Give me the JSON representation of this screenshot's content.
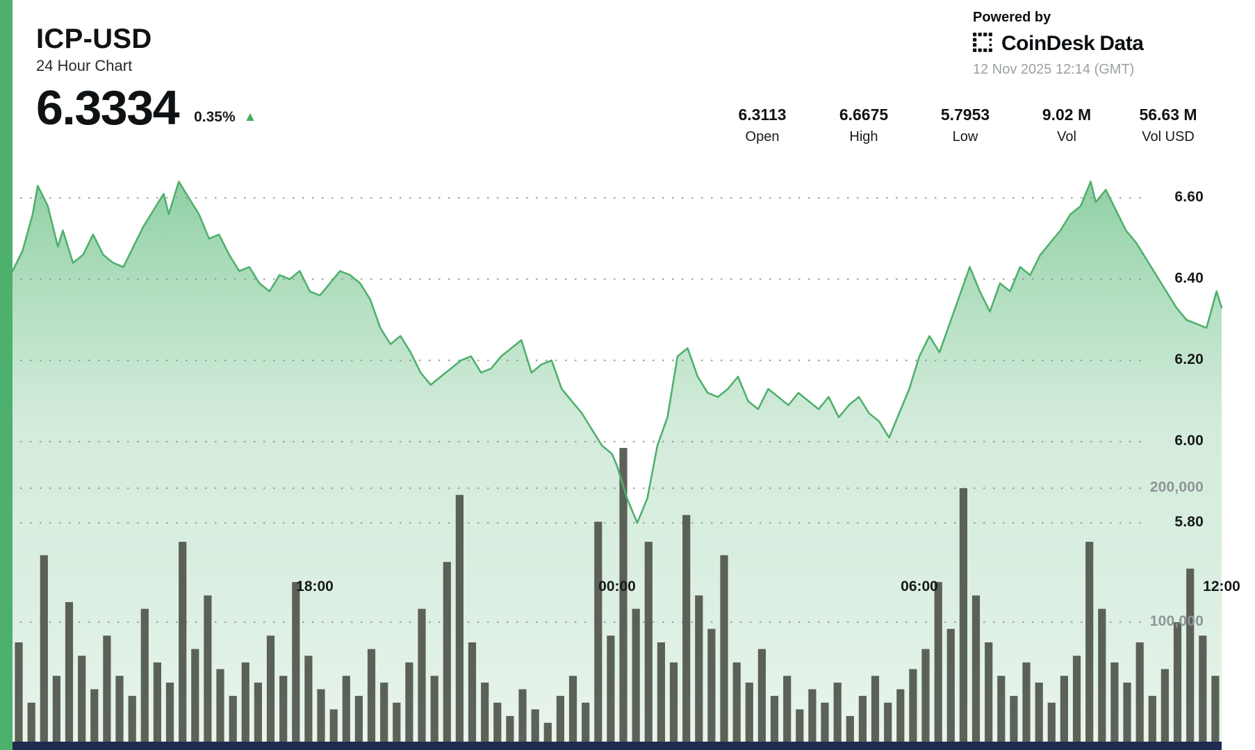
{
  "header": {
    "symbol": "ICP-USD",
    "subtitle": "24 Hour Chart",
    "price": "6.3334",
    "change": "0.35%",
    "change_direction": "up"
  },
  "branding": {
    "powered_by": "Powered by",
    "brand_1": "CoinDesk",
    "brand_2": "Data",
    "timestamp": "12 Nov 2025 12:14 (GMT)"
  },
  "stats": [
    {
      "value": "6.3113",
      "label": "Open"
    },
    {
      "value": "6.6675",
      "label": "High"
    },
    {
      "value": "5.7953",
      "label": "Low"
    },
    {
      "value": "9.02 M",
      "label": "Vol"
    },
    {
      "value": "56.63 M",
      "label": "Vol USD"
    }
  ],
  "accents": {
    "left_bar": "#4db06c",
    "bottom_bar": "#1e2b4f"
  },
  "chart_data": {
    "type": "area",
    "title": "ICP-USD 24 Hour Chart",
    "legend": "none",
    "grid": "dotted-horizontal",
    "colors": {
      "line": "#4fb06c",
      "fill_top": "#7cc894",
      "fill_mid": "#b9e0c6",
      "fill_bottom": "#e9f4ec",
      "volume_bar": "#51564b",
      "grid_dot": "#8f959b",
      "up_triangle": "#43ad60"
    },
    "x_axis": {
      "range_hours": [
        0,
        24
      ],
      "labels": [
        "18:00",
        "00:00",
        "06:00",
        "12:00"
      ],
      "label_hours": [
        6,
        12,
        18,
        24
      ]
    },
    "price_axis": {
      "side": "right",
      "ticks": [
        6.6,
        6.4,
        6.2,
        6.0,
        5.8
      ],
      "tick_labels": [
        "6.60",
        "6.40",
        "6.20",
        "6.00",
        "5.80"
      ]
    },
    "volume_axis": {
      "side": "right",
      "ticks": [
        200000,
        100000
      ],
      "tick_labels": [
        "200,000",
        "100,000"
      ]
    },
    "price_series": {
      "name": "ICP-USD price",
      "points": [
        [
          0,
          6.42
        ],
        [
          0.2,
          6.47
        ],
        [
          0.4,
          6.56
        ],
        [
          0.5,
          6.63
        ],
        [
          0.7,
          6.58
        ],
        [
          0.9,
          6.48
        ],
        [
          1,
          6.52
        ],
        [
          1.2,
          6.44
        ],
        [
          1.4,
          6.46
        ],
        [
          1.6,
          6.51
        ],
        [
          1.8,
          6.46
        ],
        [
          2,
          6.44
        ],
        [
          2.2,
          6.43
        ],
        [
          2.4,
          6.48
        ],
        [
          2.6,
          6.53
        ],
        [
          2.8,
          6.57
        ],
        [
          3,
          6.61
        ],
        [
          3.1,
          6.56
        ],
        [
          3.3,
          6.64
        ],
        [
          3.5,
          6.6
        ],
        [
          3.7,
          6.56
        ],
        [
          3.9,
          6.5
        ],
        [
          4.1,
          6.51
        ],
        [
          4.3,
          6.46
        ],
        [
          4.5,
          6.42
        ],
        [
          4.7,
          6.43
        ],
        [
          4.9,
          6.39
        ],
        [
          5.1,
          6.37
        ],
        [
          5.3,
          6.41
        ],
        [
          5.5,
          6.4
        ],
        [
          5.7,
          6.42
        ],
        [
          5.9,
          6.37
        ],
        [
          6.1,
          6.36
        ],
        [
          6.3,
          6.39
        ],
        [
          6.5,
          6.42
        ],
        [
          6.7,
          6.41
        ],
        [
          6.9,
          6.39
        ],
        [
          7.1,
          6.35
        ],
        [
          7.3,
          6.28
        ],
        [
          7.5,
          6.24
        ],
        [
          7.7,
          6.26
        ],
        [
          7.9,
          6.22
        ],
        [
          8.1,
          6.17
        ],
        [
          8.3,
          6.14
        ],
        [
          8.5,
          6.16
        ],
        [
          8.7,
          6.18
        ],
        [
          8.9,
          6.2
        ],
        [
          9.1,
          6.21
        ],
        [
          9.3,
          6.17
        ],
        [
          9.5,
          6.18
        ],
        [
          9.7,
          6.21
        ],
        [
          9.9,
          6.23
        ],
        [
          10.1,
          6.25
        ],
        [
          10.3,
          6.17
        ],
        [
          10.5,
          6.19
        ],
        [
          10.7,
          6.2
        ],
        [
          10.9,
          6.13
        ],
        [
          11.1,
          6.1
        ],
        [
          11.3,
          6.07
        ],
        [
          11.5,
          6.03
        ],
        [
          11.7,
          5.99
        ],
        [
          11.9,
          5.97
        ],
        [
          12,
          5.94
        ],
        [
          12.2,
          5.86
        ],
        [
          12.4,
          5.8
        ],
        [
          12.6,
          5.86
        ],
        [
          12.8,
          5.99
        ],
        [
          13,
          6.06
        ],
        [
          13.2,
          6.21
        ],
        [
          13.4,
          6.23
        ],
        [
          13.6,
          6.16
        ],
        [
          13.8,
          6.12
        ],
        [
          14,
          6.11
        ],
        [
          14.2,
          6.13
        ],
        [
          14.4,
          6.16
        ],
        [
          14.6,
          6.1
        ],
        [
          14.8,
          6.08
        ],
        [
          15,
          6.13
        ],
        [
          15.2,
          6.11
        ],
        [
          15.4,
          6.09
        ],
        [
          15.6,
          6.12
        ],
        [
          15.8,
          6.1
        ],
        [
          16,
          6.08
        ],
        [
          16.2,
          6.11
        ],
        [
          16.4,
          6.06
        ],
        [
          16.6,
          6.09
        ],
        [
          16.8,
          6.11
        ],
        [
          17,
          6.07
        ],
        [
          17.2,
          6.05
        ],
        [
          17.4,
          6.01
        ],
        [
          17.6,
          6.07
        ],
        [
          17.8,
          6.13
        ],
        [
          18,
          6.21
        ],
        [
          18.2,
          6.26
        ],
        [
          18.4,
          6.22
        ],
        [
          18.6,
          6.29
        ],
        [
          18.8,
          6.36
        ],
        [
          19,
          6.43
        ],
        [
          19.2,
          6.37
        ],
        [
          19.4,
          6.32
        ],
        [
          19.6,
          6.39
        ],
        [
          19.8,
          6.37
        ],
        [
          20,
          6.43
        ],
        [
          20.2,
          6.41
        ],
        [
          20.4,
          6.46
        ],
        [
          20.6,
          6.49
        ],
        [
          20.8,
          6.52
        ],
        [
          21,
          6.56
        ],
        [
          21.2,
          6.58
        ],
        [
          21.4,
          6.64
        ],
        [
          21.5,
          6.59
        ],
        [
          21.7,
          6.62
        ],
        [
          21.9,
          6.57
        ],
        [
          22.1,
          6.52
        ],
        [
          22.3,
          6.49
        ],
        [
          22.5,
          6.45
        ],
        [
          22.7,
          6.41
        ],
        [
          22.9,
          6.37
        ],
        [
          23.1,
          6.33
        ],
        [
          23.3,
          6.3
        ],
        [
          23.5,
          6.29
        ],
        [
          23.7,
          6.28
        ],
        [
          23.9,
          6.37
        ],
        [
          24,
          6.33
        ]
      ]
    },
    "volume_series": {
      "name": "Volume",
      "interval_minutes": 15,
      "values": [
        85000,
        40000,
        150000,
        60000,
        115000,
        75000,
        50000,
        90000,
        60000,
        45000,
        110000,
        70000,
        55000,
        160000,
        80000,
        120000,
        65000,
        45000,
        70000,
        55000,
        90000,
        60000,
        130000,
        75000,
        50000,
        35000,
        60000,
        45000,
        80000,
        55000,
        40000,
        70000,
        110000,
        60000,
        145000,
        195000,
        85000,
        55000,
        40000,
        30000,
        50000,
        35000,
        25000,
        45000,
        60000,
        40000,
        175000,
        90000,
        230000,
        110000,
        160000,
        85000,
        70000,
        180000,
        120000,
        95000,
        150000,
        70000,
        55000,
        80000,
        45000,
        60000,
        35000,
        50000,
        40000,
        55000,
        30000,
        45000,
        60000,
        40000,
        50000,
        65000,
        80000,
        130000,
        95000,
        200000,
        120000,
        85000,
        60000,
        45000,
        70000,
        55000,
        40000,
        60000,
        75000,
        160000,
        110000,
        70000,
        55000,
        85000,
        45000,
        65000,
        100000,
        140000,
        90000,
        60000
      ]
    }
  }
}
